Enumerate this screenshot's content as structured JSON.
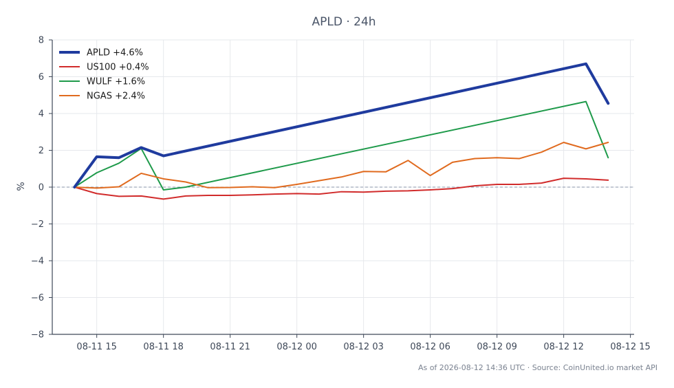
{
  "chart_data": {
    "type": "line",
    "title": "APLD · 24h",
    "xlabel": "",
    "ylabel": "%",
    "ylim": [
      -8,
      8
    ],
    "yticks": [
      -8,
      -6,
      -4,
      -2,
      0,
      2,
      4,
      6,
      8
    ],
    "yticklabels": [
      "−8",
      "−6",
      "−4",
      "−2",
      "0",
      "2",
      "4",
      "6",
      "8"
    ],
    "xlim": [
      "2026-08-11 13:00",
      "2026-08-12 15:10"
    ],
    "xticks": [
      "2026-08-11 15:00",
      "2026-08-11 18:00",
      "2026-08-11 21:00",
      "2026-08-12 00:00",
      "2026-08-12 03:00",
      "2026-08-12 06:00",
      "2026-08-12 09:00",
      "2026-08-12 12:00",
      "2026-08-12 15:00"
    ],
    "xticklabels": [
      "08-11 15",
      "08-11 18",
      "08-11 21",
      "08-12 00",
      "08-12 03",
      "08-12 06",
      "08-12 09",
      "08-12 12",
      "08-12 15"
    ],
    "grid": true,
    "zero_line": true,
    "legend_position": "top-left",
    "series": [
      {
        "name": "APLD +4.6%",
        "color": "#1f3b9e",
        "width": "thick",
        "x": [
          "2026-08-11 14:00",
          "2026-08-11 15:00",
          "2026-08-11 16:00",
          "2026-08-11 17:00",
          "2026-08-11 18:00",
          "2026-08-12 13:00",
          "2026-08-12 14:00"
        ],
        "values": [
          0.0,
          1.65,
          1.6,
          2.15,
          1.7,
          6.7,
          4.55
        ]
      },
      {
        "name": "US100 +0.4%",
        "color": "#d12b2b",
        "width": "normal",
        "x": [
          "2026-08-11 14:00",
          "2026-08-11 15:00",
          "2026-08-11 16:00",
          "2026-08-11 17:00",
          "2026-08-11 18:00",
          "2026-08-11 19:00",
          "2026-08-11 20:00",
          "2026-08-11 21:00",
          "2026-08-11 22:00",
          "2026-08-11 23:00",
          "2026-08-12 00:00",
          "2026-08-12 01:00",
          "2026-08-12 02:00",
          "2026-08-12 03:00",
          "2026-08-12 04:00",
          "2026-08-12 05:00",
          "2026-08-12 06:00",
          "2026-08-12 07:00",
          "2026-08-12 08:00",
          "2026-08-12 09:00",
          "2026-08-12 10:00",
          "2026-08-12 11:00",
          "2026-08-12 12:00",
          "2026-08-12 13:00",
          "2026-08-12 14:00"
        ],
        "values": [
          0.0,
          -0.35,
          -0.5,
          -0.48,
          -0.65,
          -0.48,
          -0.45,
          -0.45,
          -0.42,
          -0.38,
          -0.35,
          -0.38,
          -0.25,
          -0.27,
          -0.22,
          -0.2,
          -0.15,
          -0.08,
          0.07,
          0.15,
          0.15,
          0.22,
          0.48,
          0.45,
          0.38
        ]
      },
      {
        "name": "WULF +1.6%",
        "color": "#1e9a4a",
        "width": "normal",
        "x": [
          "2026-08-11 14:00",
          "2026-08-11 15:00",
          "2026-08-11 16:00",
          "2026-08-11 17:00",
          "2026-08-11 18:00",
          "2026-08-11 19:00",
          "2026-08-12 13:00",
          "2026-08-12 14:00"
        ],
        "values": [
          0.0,
          0.78,
          1.3,
          2.1,
          -0.15,
          0.0,
          4.65,
          1.6
        ]
      },
      {
        "name": "NGAS +2.4%",
        "color": "#e06a1e",
        "width": "normal",
        "x": [
          "2026-08-11 14:00",
          "2026-08-11 15:00",
          "2026-08-11 16:00",
          "2026-08-11 17:00",
          "2026-08-11 18:00",
          "2026-08-11 19:00",
          "2026-08-11 20:00",
          "2026-08-11 21:00",
          "2026-08-11 22:00",
          "2026-08-11 23:00",
          "2026-08-12 00:00",
          "2026-08-12 01:00",
          "2026-08-12 02:00",
          "2026-08-12 03:00",
          "2026-08-12 04:00",
          "2026-08-12 05:00",
          "2026-08-12 06:00",
          "2026-08-12 07:00",
          "2026-08-12 08:00",
          "2026-08-12 09:00",
          "2026-08-12 10:00",
          "2026-08-12 11:00",
          "2026-08-12 12:00",
          "2026-08-12 13:00",
          "2026-08-12 14:00"
        ],
        "values": [
          0.0,
          -0.05,
          0.02,
          0.75,
          0.45,
          0.28,
          -0.03,
          -0.02,
          0.02,
          -0.03,
          0.15,
          0.35,
          0.55,
          0.85,
          0.83,
          1.45,
          0.63,
          1.35,
          1.55,
          1.6,
          1.55,
          1.9,
          2.43,
          2.08,
          2.43
        ]
      }
    ],
    "footer": "As of 2026-08-12 14:36 UTC · Source: CoinUnited.io market API"
  },
  "colors": {
    "grid": "#e6e8ec",
    "axis": "#3d4757",
    "zero_line": "#8a96aa"
  }
}
